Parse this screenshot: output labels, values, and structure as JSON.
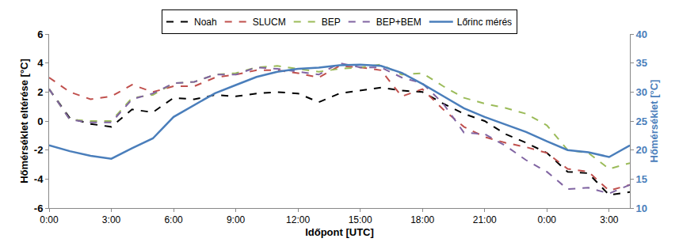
{
  "chart_data": {
    "type": "line",
    "xlabel": "Időpont [UTC]",
    "ylabel": "Hőmérséklet eltérése [°C]",
    "y2label": "Hőmérséklet [°C]",
    "x": [
      0,
      1,
      2,
      3,
      4,
      5,
      6,
      7,
      8,
      9,
      10,
      11,
      12,
      13,
      14,
      15,
      16,
      17,
      18,
      19,
      20,
      21,
      22,
      23,
      24,
      25,
      26,
      27,
      28
    ],
    "xlim": [
      0,
      28
    ],
    "xticks": [
      {
        "value": 0,
        "label": "0:00"
      },
      {
        "value": 3,
        "label": "3:00"
      },
      {
        "value": 6,
        "label": "6:00"
      },
      {
        "value": 9,
        "label": "9:00"
      },
      {
        "value": 12,
        "label": "12:00"
      },
      {
        "value": 15,
        "label": "15:00"
      },
      {
        "value": 18,
        "label": "18:00"
      },
      {
        "value": 21,
        "label": "21:00"
      },
      {
        "value": 24,
        "label": "0:00"
      },
      {
        "value": 27,
        "label": "3:00"
      }
    ],
    "ylim": [
      -6,
      6
    ],
    "yticks": [
      -6,
      -4,
      -2,
      0,
      2,
      4,
      6
    ],
    "y2lim": [
      10,
      40
    ],
    "y2ticks": [
      10,
      15,
      20,
      25,
      30,
      35,
      40
    ],
    "grid": false,
    "legend": "top",
    "series": [
      {
        "name": "Noah",
        "color": "#000000",
        "line_style": "dash",
        "values": [
          2.2,
          0.2,
          -0.2,
          -0.4,
          0.8,
          0.6,
          1.6,
          1.5,
          1.8,
          1.7,
          1.9,
          2.0,
          1.9,
          1.3,
          1.9,
          2.1,
          2.3,
          2.1,
          2.0,
          1.2,
          0.5,
          0.0,
          -0.9,
          -1.5,
          -2.2,
          -3.5,
          -3.6,
          -5.1,
          -4.9
        ]
      },
      {
        "name": "SLUCM",
        "color": "#c0504d",
        "line_style": "dash",
        "values": [
          3.0,
          2.0,
          1.5,
          1.7,
          2.5,
          2.0,
          2.4,
          2.4,
          3.0,
          3.2,
          3.5,
          3.5,
          3.3,
          3.0,
          3.8,
          3.7,
          3.5,
          1.7,
          2.2,
          0.8,
          -0.4,
          -1.1,
          -1.5,
          -1.8,
          -2.2,
          -3.3,
          -3.5,
          -4.8,
          -4.4
        ]
      },
      {
        "name": "BEP",
        "color": "#9bbb59",
        "line_style": "dash",
        "values": [
          2.2,
          0.1,
          0.0,
          0.0,
          1.6,
          1.8,
          2.6,
          2.7,
          3.2,
          3.3,
          3.7,
          3.8,
          3.6,
          3.4,
          3.6,
          3.7,
          3.9,
          3.2,
          3.3,
          2.4,
          1.6,
          1.2,
          0.9,
          0.5,
          -0.3,
          -2.0,
          -2.2,
          -3.3,
          -2.9
        ]
      },
      {
        "name": "BEP+BEM",
        "color": "#8064a2",
        "line_style": "dash",
        "values": [
          2.2,
          0.1,
          -0.1,
          -0.1,
          1.5,
          1.9,
          2.6,
          2.7,
          3.2,
          3.2,
          3.7,
          3.6,
          3.4,
          3.2,
          4.0,
          3.7,
          3.7,
          3.0,
          2.6,
          1.2,
          -0.8,
          -0.9,
          -1.7,
          -2.7,
          -3.5,
          -4.7,
          -4.6,
          -5.0,
          -4.4
        ]
      },
      {
        "name": "Lőrinc mérés",
        "color": "#4a7ebb",
        "line_style": "solid",
        "axis": "y2",
        "values": [
          20.8,
          19.8,
          19.0,
          18.5,
          20.3,
          22.0,
          25.7,
          27.8,
          29.8,
          31.2,
          32.6,
          33.5,
          34.0,
          34.2,
          34.6,
          34.7,
          34.5,
          33.3,
          31.4,
          29.3,
          27.2,
          25.7,
          24.4,
          23.1,
          21.5,
          20.0,
          19.6,
          18.8,
          20.8
        ]
      }
    ]
  }
}
